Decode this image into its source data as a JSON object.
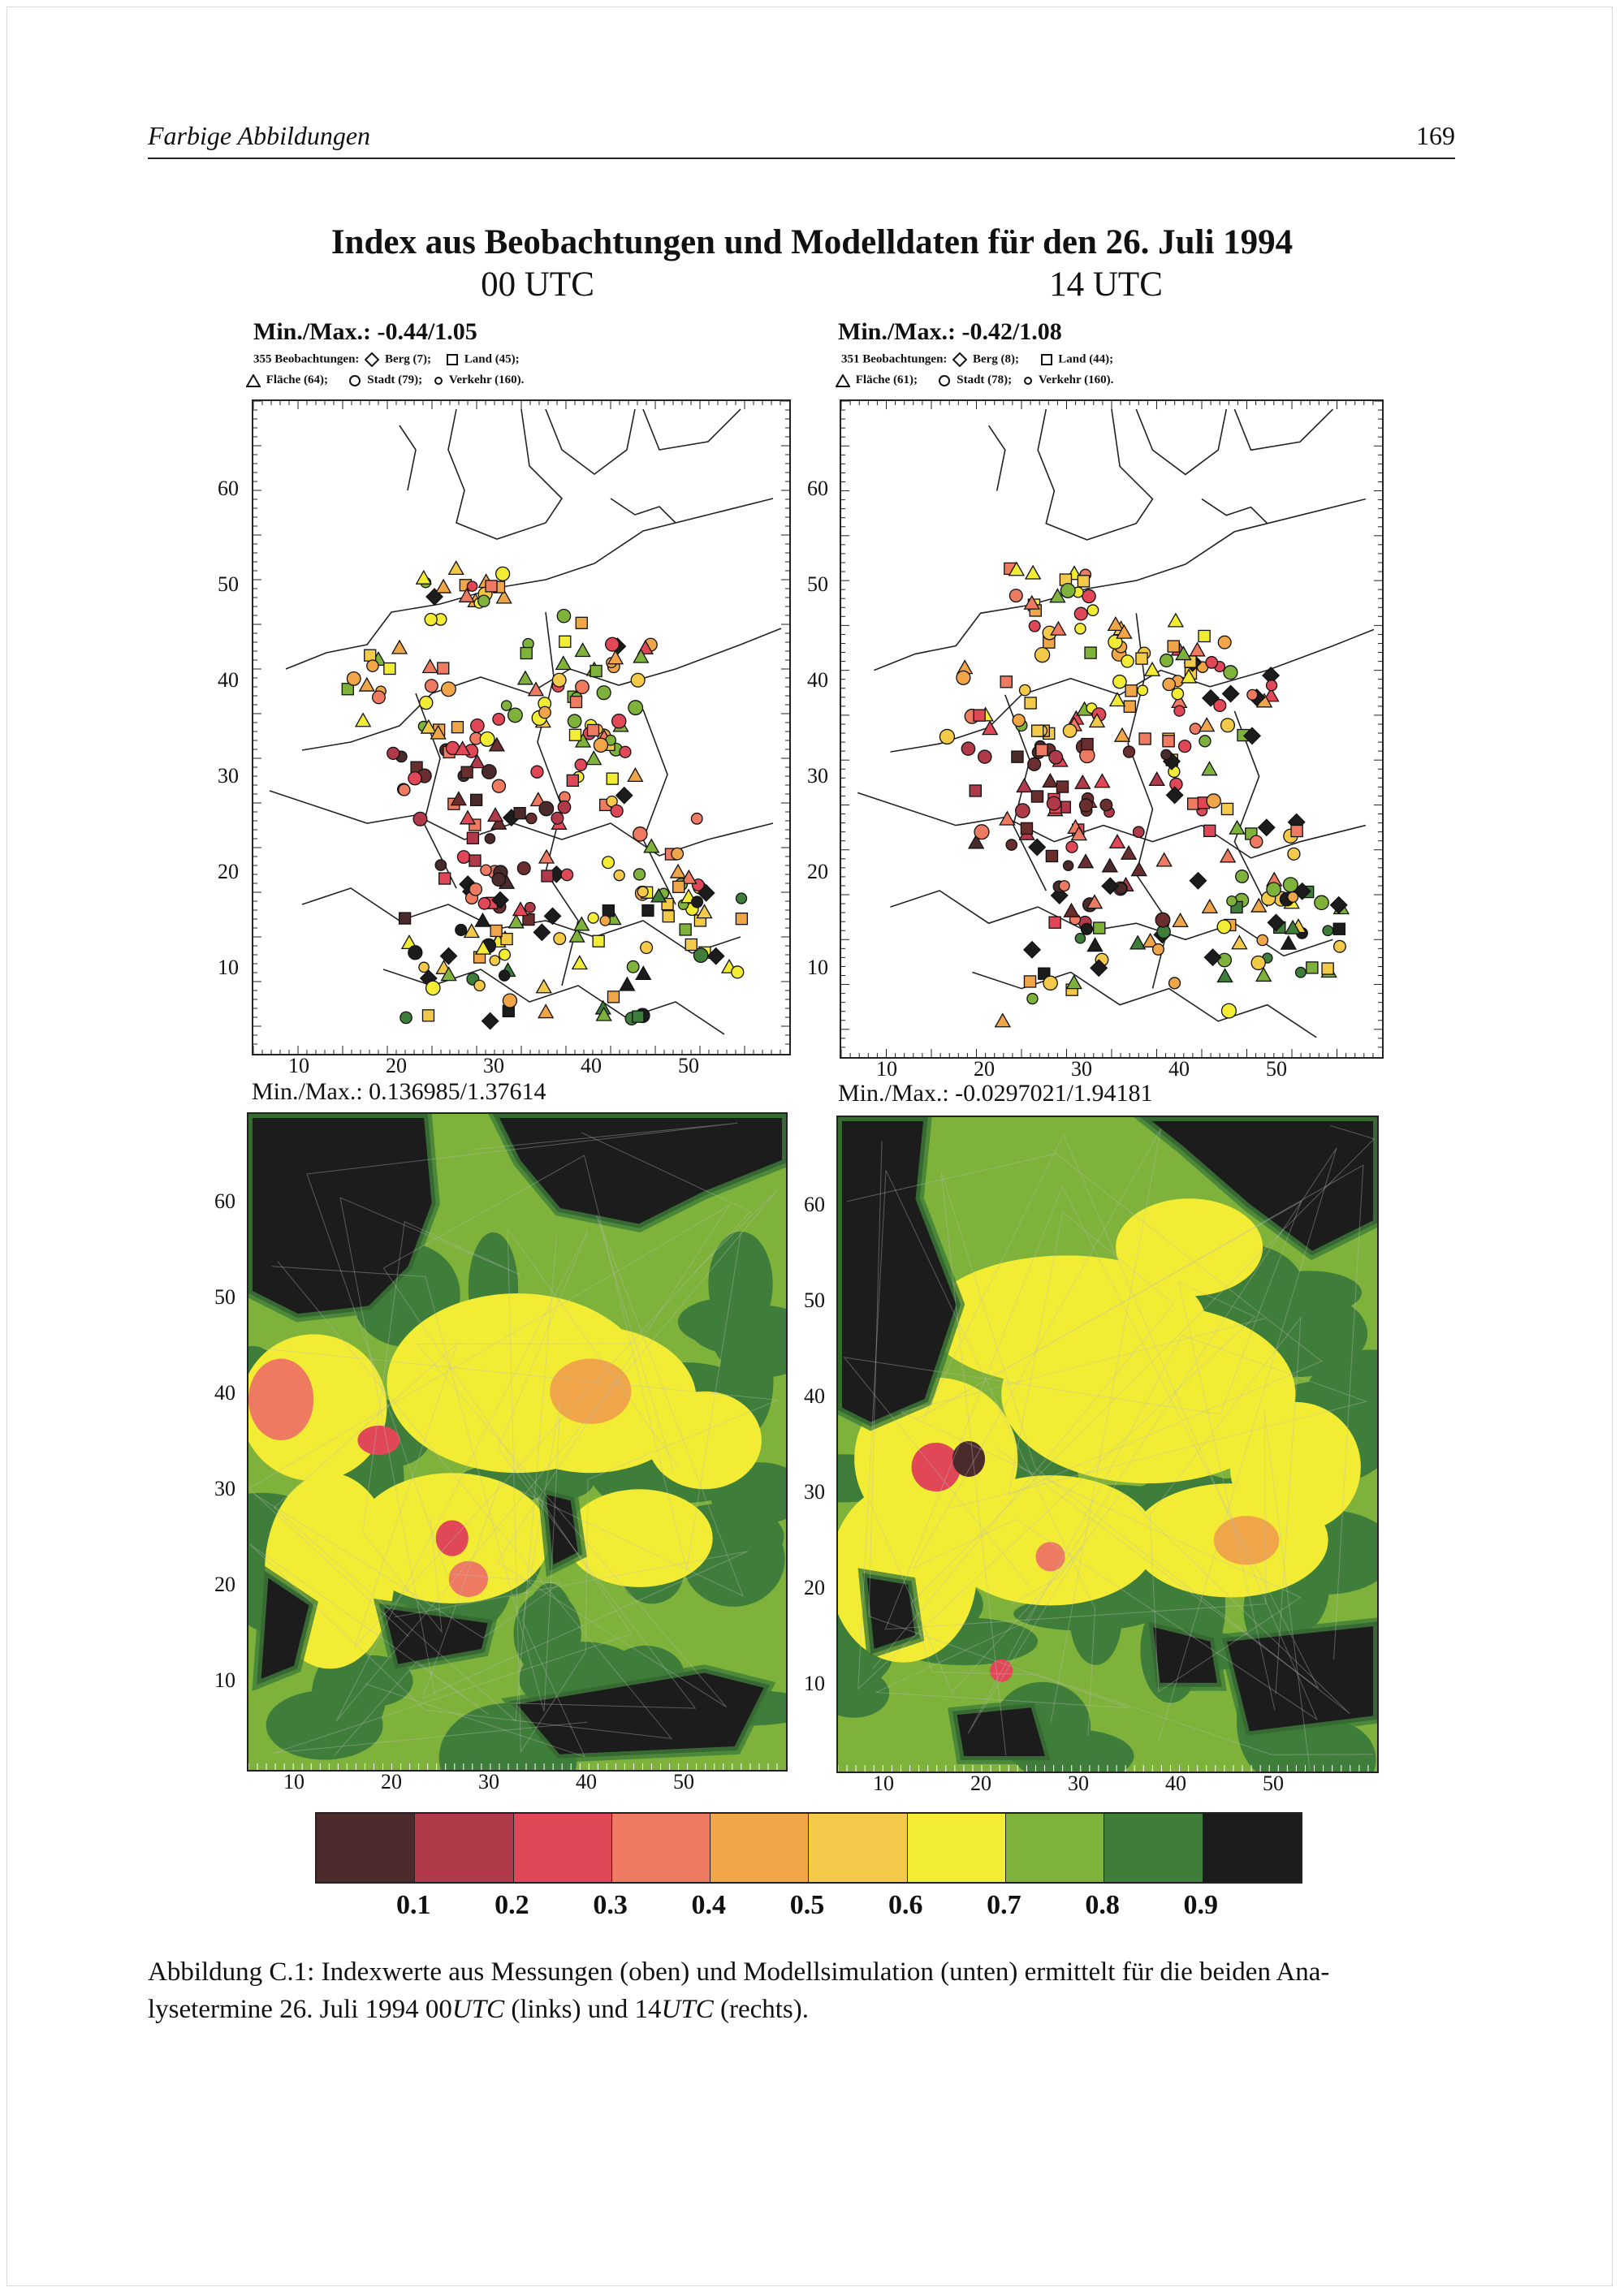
{
  "header": {
    "left": "Farbige Abbildungen",
    "page_number": "169"
  },
  "figure": {
    "title": "Index aus Beobachtungen und Modelldaten für den 26. Juli 1994",
    "time_left": "00 UTC",
    "time_right": "14 UTC",
    "obs_left": {
      "minmax": "Min./Max.: -0.44/1.05",
      "legend_line1_a": "355 Beobachtungen:",
      "legend_line1_b": "Berg (7);",
      "legend_line1_c": "Land (45);",
      "legend_line2_a": "Fläche (64);",
      "legend_line2_b": "Stadt (79);",
      "legend_line2_c": "Verkehr (160)."
    },
    "obs_right": {
      "minmax": "Min./Max.: -0.42/1.08",
      "legend_line1_a": "351 Beobachtungen:",
      "legend_line1_b": "Berg (8);",
      "legend_line1_c": "Land (44);",
      "legend_line2_a": "Fläche (61);",
      "legend_line2_b": "Stadt (78);",
      "legend_line2_c": "Verkehr (160)."
    },
    "model_left": {
      "minmax": "Min./Max.: 0.136985/1.37614"
    },
    "model_right": {
      "minmax": "Min./Max.: -0.0297021/1.94181"
    },
    "y_ticks": [
      "60",
      "50",
      "40",
      "30",
      "20",
      "10"
    ],
    "x_ticks": [
      "10",
      "20",
      "30",
      "40",
      "50"
    ],
    "colorbar": {
      "colors": [
        "#4a2a2a",
        "#b03a4a",
        "#e04858",
        "#ee7a62",
        "#efa548",
        "#f3c94a",
        "#f4e445",
        "#f2ef2e",
        "#7fb23a",
        "#3f7d3a",
        "#1c1c1c"
      ],
      "labels": [
        "0.1",
        "0.2",
        "0.3",
        "0.4",
        "0.5",
        "0.6",
        "0.7",
        "0.8",
        "0.9"
      ]
    }
  },
  "caption": {
    "line1": "Abbildung C.1: Indexwerte aus Messungen (oben) und Modellsimulation (unten) ermittelt für die beiden Ana-",
    "line2_a": "lysetermine 26. Juli 1994 00",
    "line2_b": "UTC",
    "line2_c": " (links) und 14",
    "line2_d": "UTC",
    "line2_e": " (rechts)."
  }
}
